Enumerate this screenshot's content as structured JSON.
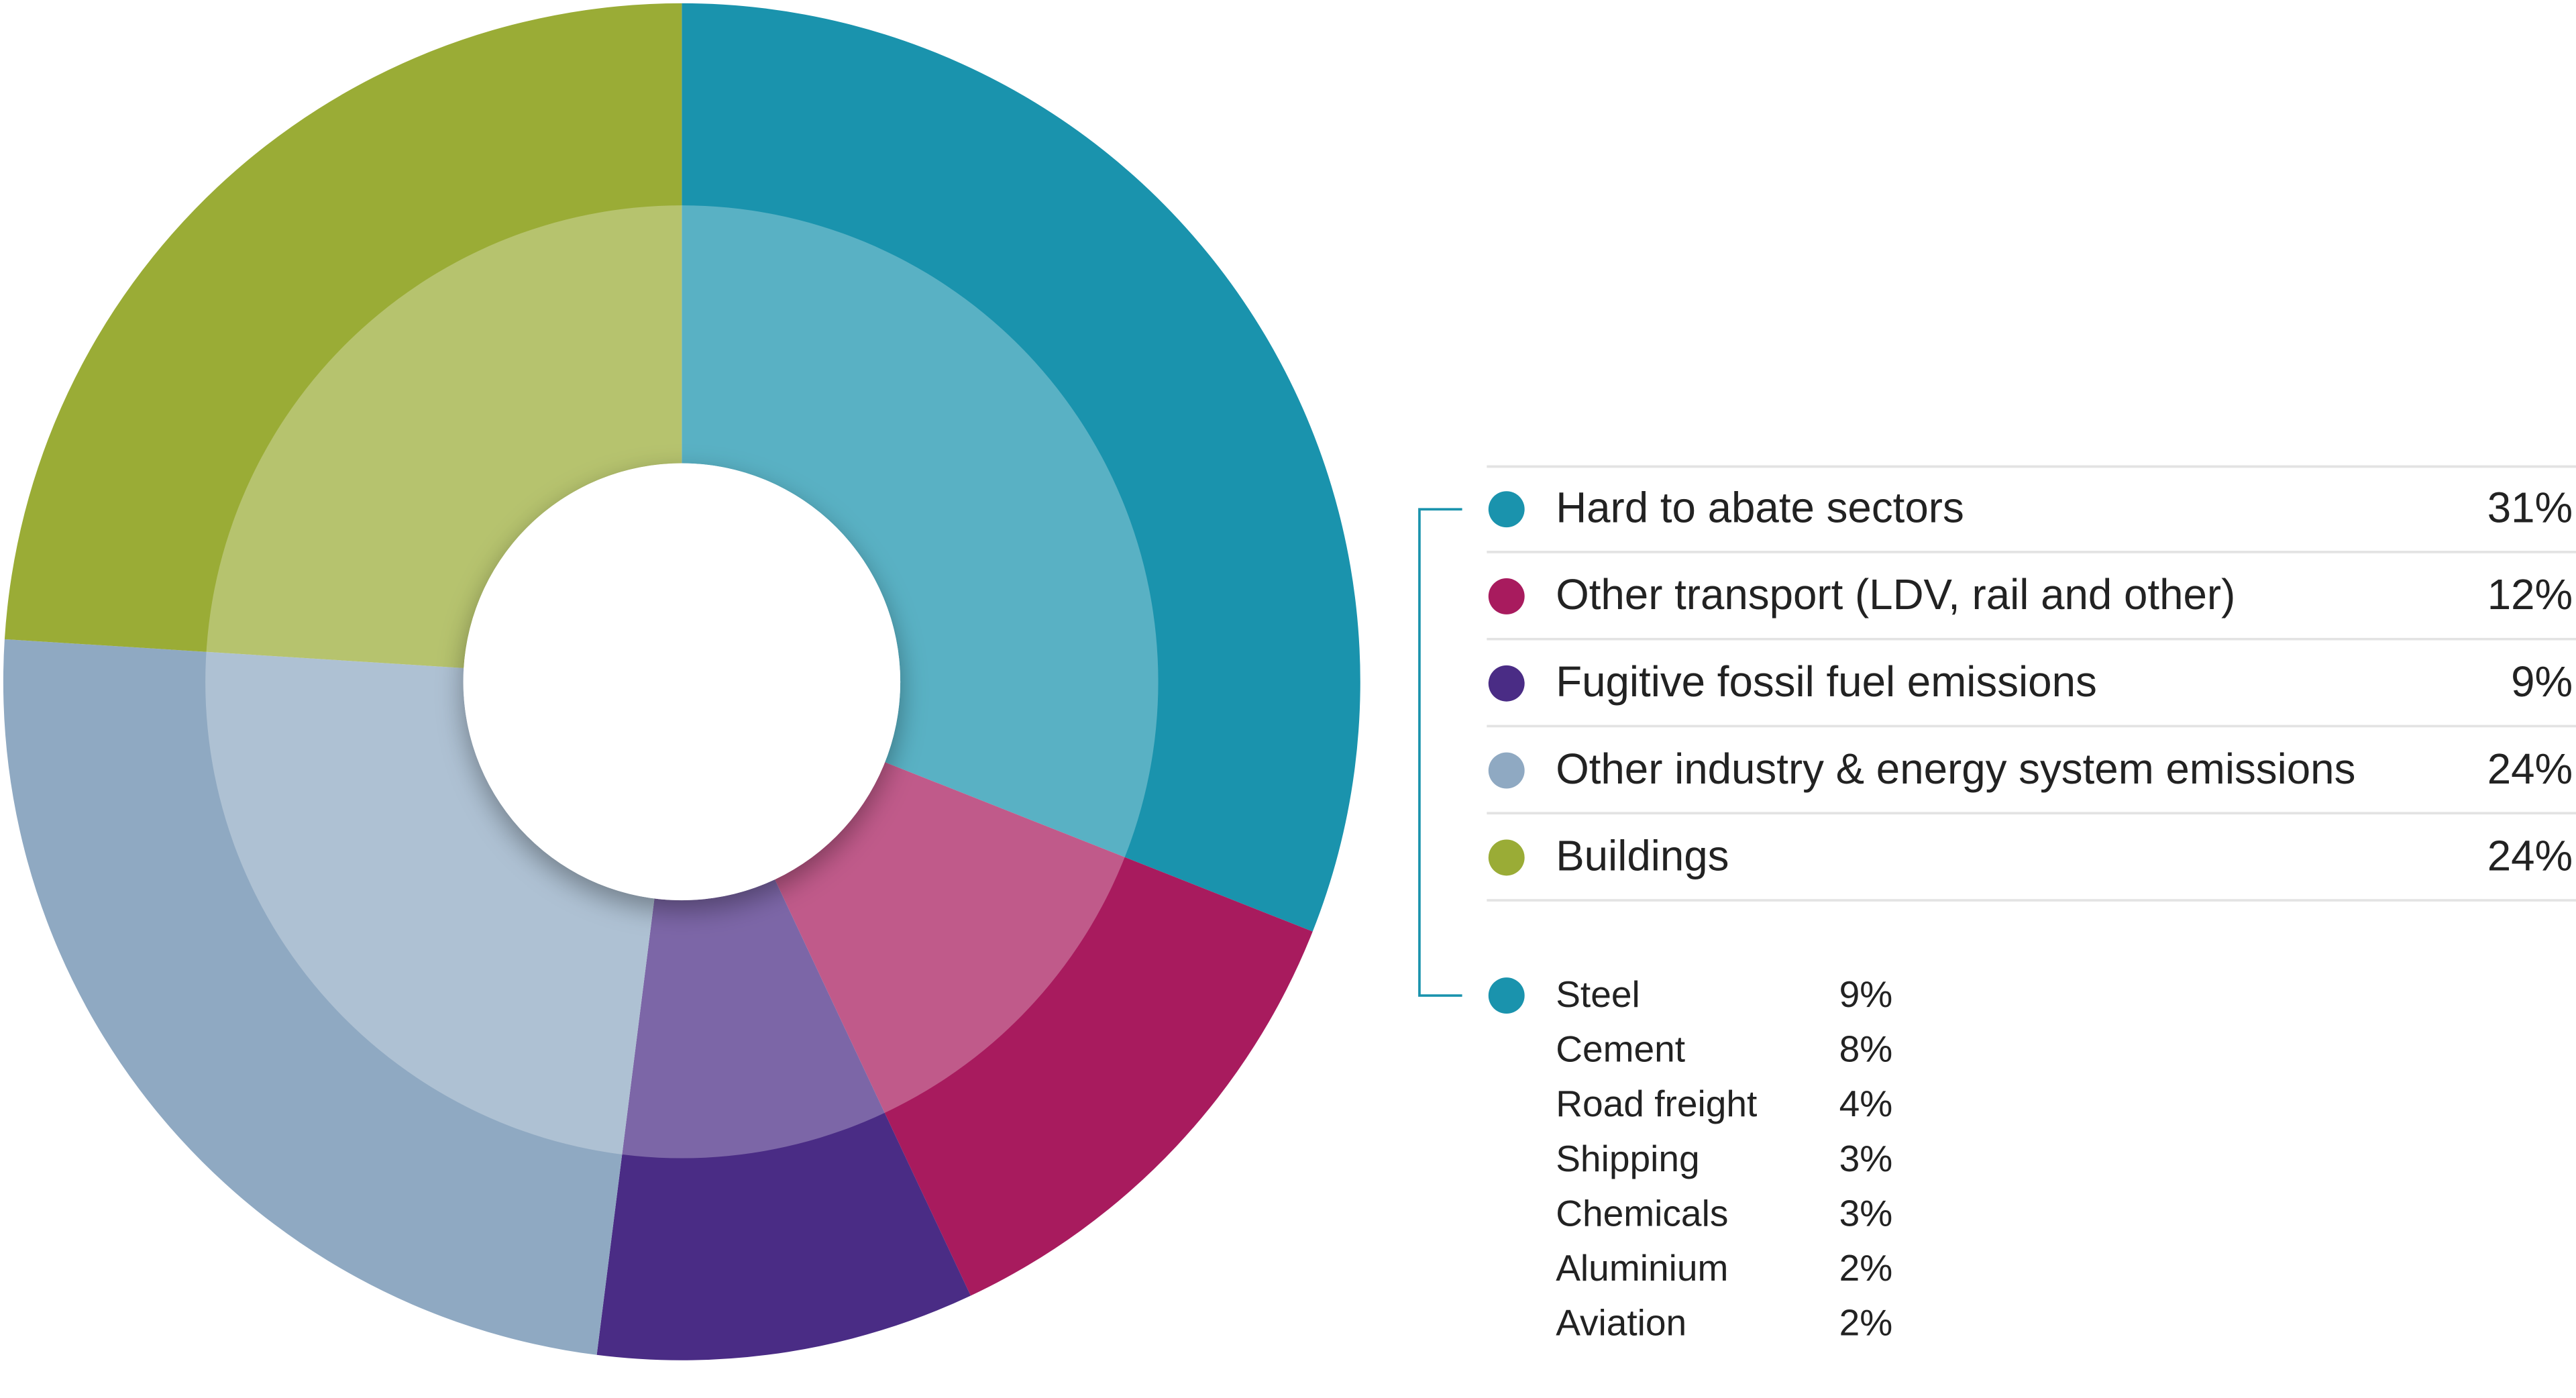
{
  "chart_data": {
    "type": "pie",
    "categories": [
      "Hard to abate sectors",
      "Other transport (LDV, rail and other)",
      "Fugitive fossil fuel emissions",
      "Other industry & energy system emissions",
      "Buildings"
    ],
    "values": [
      31,
      12,
      9,
      24,
      24
    ],
    "value_labels": [
      "31%",
      "12%",
      "9%",
      "24%",
      "24%"
    ],
    "colors": [
      "#1a93ad",
      "#a81b5e",
      "#4a2c85",
      "#8fa9c2",
      "#9aac36"
    ],
    "breakdown": {
      "categories": [
        "Steel",
        "Cement",
        "Road freight",
        "Shipping",
        "Chemicals",
        "Aluminium",
        "Aviation"
      ],
      "values": [
        9,
        8,
        4,
        3,
        3,
        2,
        2
      ],
      "value_labels": [
        "9%",
        "8%",
        "4%",
        "3%",
        "3%",
        "2%",
        "2%"
      ]
    }
  }
}
